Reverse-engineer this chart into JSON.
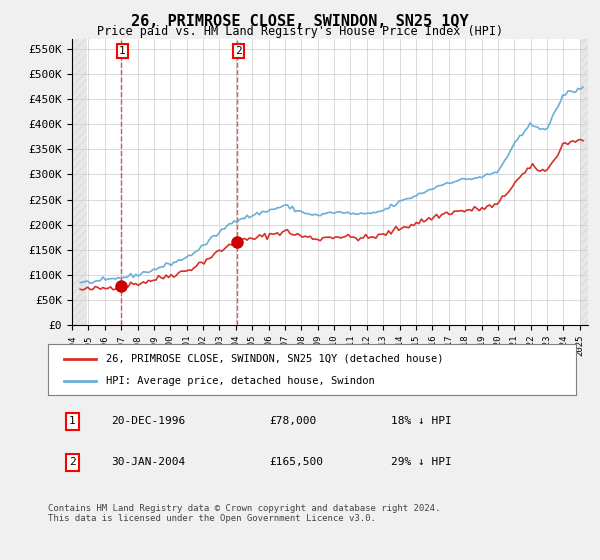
{
  "title": "26, PRIMROSE CLOSE, SWINDON, SN25 1QY",
  "subtitle": "Price paid vs. HM Land Registry's House Price Index (HPI)",
  "ylabel_ticks": [
    "£0",
    "£50K",
    "£100K",
    "£150K",
    "£200K",
    "£250K",
    "£300K",
    "£350K",
    "£400K",
    "£450K",
    "£500K",
    "£550K"
  ],
  "ytick_values": [
    0,
    50000,
    100000,
    150000,
    200000,
    250000,
    300000,
    350000,
    400000,
    450000,
    500000,
    550000
  ],
  "ylim": [
    0,
    570000
  ],
  "xlim_start": 1994.0,
  "xlim_end": 2025.5,
  "hpi_color": "#6baed6",
  "price_color": "#d73027",
  "marker_color": "#cc0000",
  "vline_color": "#d73027",
  "transaction1_x": 1996.97,
  "transaction1_y": 78000,
  "transaction1_label": "1",
  "transaction1_date": "20-DEC-1996",
  "transaction1_price": "£78,000",
  "transaction1_hpi": "18% ↓ HPI",
  "transaction2_x": 2004.08,
  "transaction2_y": 165500,
  "transaction2_label": "2",
  "transaction2_date": "30-JAN-2004",
  "transaction2_price": "£165,500",
  "transaction2_hpi": "29% ↓ HPI",
  "legend_line1": "26, PRIMROSE CLOSE, SWINDON, SN25 1QY (detached house)",
  "legend_line2": "HPI: Average price, detached house, Swindon",
  "footnote": "Contains HM Land Registry data © Crown copyright and database right 2024.\nThis data is licensed under the Open Government Licence v3.0.",
  "background_color": "#f0f0f0",
  "plot_bg_color": "#ffffff",
  "grid_color": "#cccccc"
}
